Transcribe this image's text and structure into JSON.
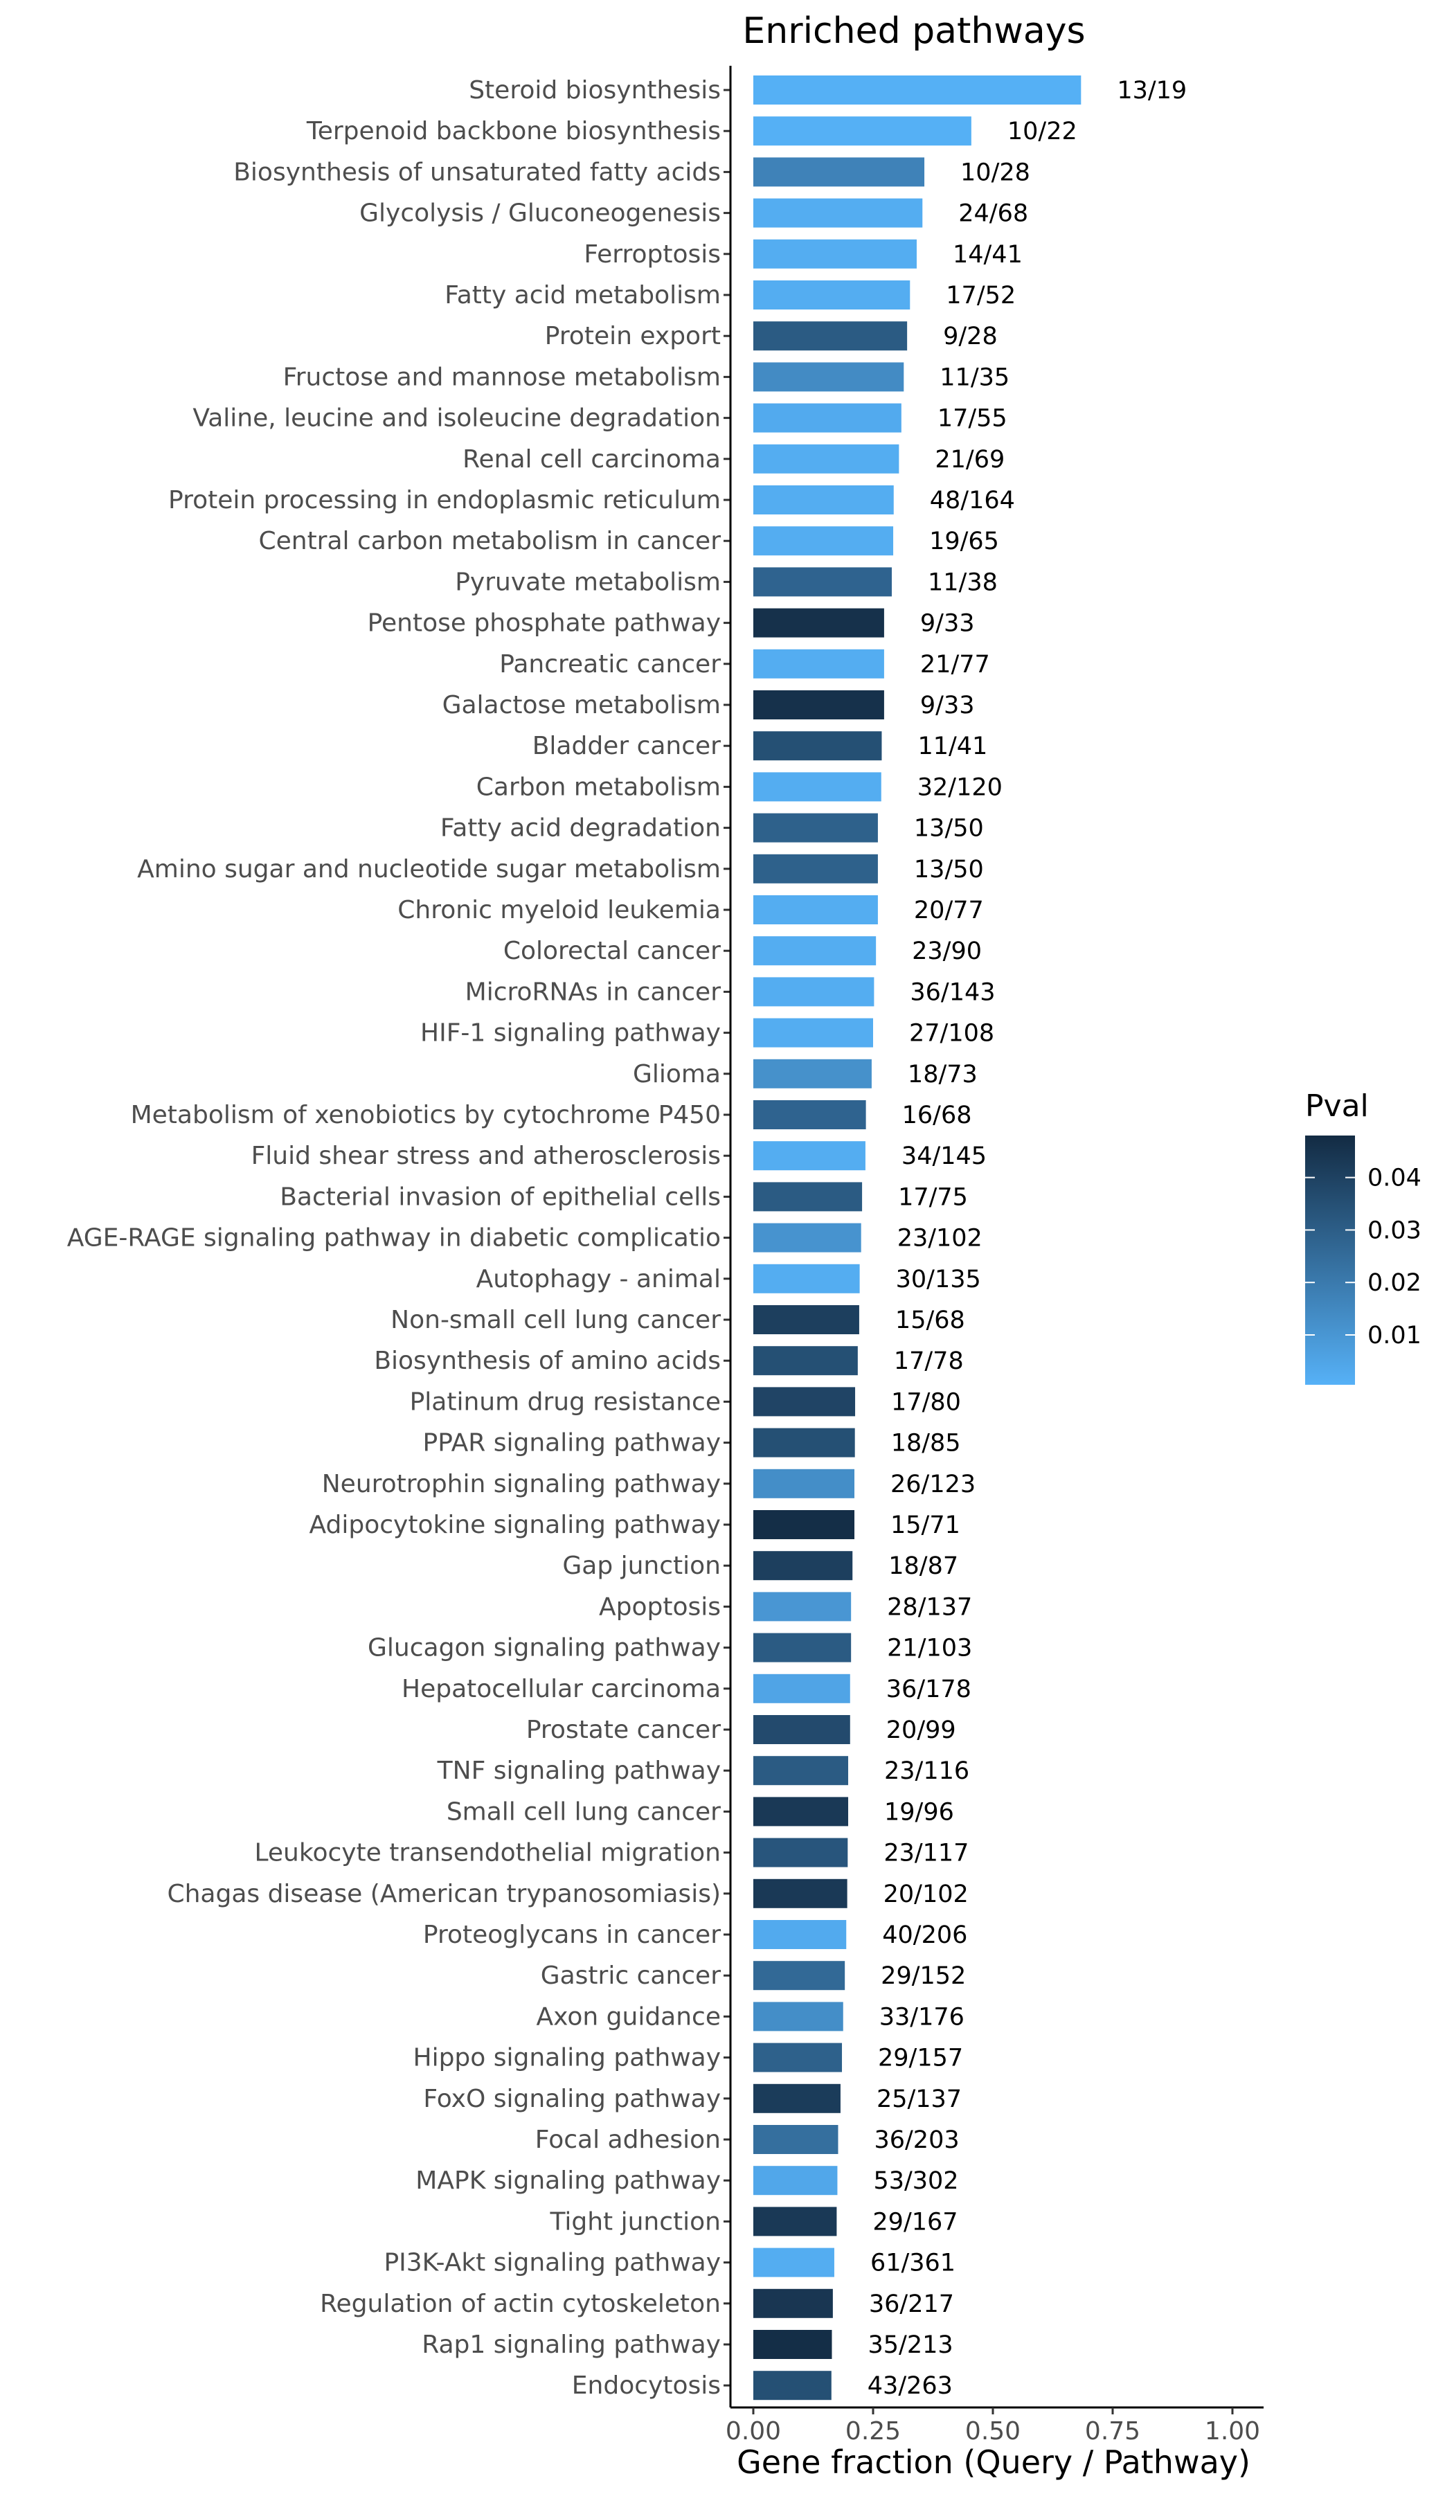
{
  "chart_data": {
    "type": "bar",
    "orientation": "horizontal",
    "title": "Enriched pathways",
    "xlabel": "Gene fraction (Query / Pathway)",
    "ylabel": "",
    "xlim": [
      0,
      1
    ],
    "xticks": [
      "0.00",
      "0.25",
      "0.50",
      "0.75",
      "1.00"
    ],
    "grid": false,
    "legend": {
      "title": "Pval",
      "placement": "right",
      "ticks": [
        "0.04",
        "0.03",
        "0.02",
        "0.01"
      ],
      "tick_values": [
        0.04,
        0.03,
        0.02,
        0.01
      ],
      "range": [
        0.0005,
        0.048
      ],
      "color_low": "#56b1f7",
      "color_high": "#132b43"
    },
    "categories": [
      "Steroid biosynthesis",
      "Terpenoid backbone biosynthesis",
      "Biosynthesis of unsaturated fatty acids",
      "Glycolysis / Gluconeogenesis",
      "Ferroptosis",
      "Fatty acid metabolism",
      "Protein export",
      "Fructose and mannose metabolism",
      "Valine, leucine and isoleucine degradation",
      "Renal cell carcinoma",
      "Protein processing in endoplasmic reticulum",
      "Central carbon metabolism in cancer",
      "Pyruvate metabolism",
      "Pentose phosphate pathway",
      "Pancreatic cancer",
      "Galactose metabolism",
      "Bladder cancer",
      "Carbon metabolism",
      "Fatty acid degradation",
      "Amino sugar and nucleotide sugar metabolism",
      "Chronic myeloid leukemia",
      "Colorectal cancer",
      "MicroRNAs in cancer",
      "HIF-1 signaling pathway",
      "Glioma",
      "Metabolism of xenobiotics by cytochrome P450",
      "Fluid shear stress and atherosclerosis",
      "Bacterial invasion of epithelial cells",
      "AGE-RAGE signaling pathway in diabetic complicatio",
      "Autophagy - animal",
      "Non-small cell lung cancer",
      "Biosynthesis of amino acids",
      "Platinum drug resistance",
      "PPAR signaling pathway",
      "Neurotrophin signaling pathway",
      "Adipocytokine signaling pathway",
      "Gap junction",
      "Apoptosis",
      "Glucagon signaling pathway",
      "Hepatocellular carcinoma",
      "Prostate cancer",
      "TNF signaling pathway",
      "Small cell lung cancer",
      "Leukocyte transendothelial migration",
      "Chagas disease (American trypanosomiasis)",
      "Proteoglycans in cancer",
      "Gastric cancer",
      "Axon guidance",
      "Hippo signaling pathway",
      "FoxO signaling pathway",
      "Focal adhesion",
      "MAPK signaling pathway",
      "Tight junction",
      "PI3K-Akt signaling pathway",
      "Regulation of actin cytoskeleton",
      "Rap1 signaling pathway",
      "Endocytosis"
    ],
    "labels": [
      "13/19",
      "10/22",
      "10/28",
      "24/68",
      "14/41",
      "17/52",
      "9/28",
      "11/35",
      "17/55",
      "21/69",
      "48/164",
      "19/65",
      "11/38",
      "9/33",
      "21/77",
      "9/33",
      "11/41",
      "32/120",
      "13/50",
      "13/50",
      "20/77",
      "23/90",
      "36/143",
      "27/108",
      "18/73",
      "16/68",
      "34/145",
      "17/75",
      "23/102",
      "30/135",
      "15/68",
      "17/78",
      "17/80",
      "18/85",
      "26/123",
      "15/71",
      "18/87",
      "28/137",
      "21/103",
      "36/178",
      "20/99",
      "23/116",
      "19/96",
      "23/117",
      "20/102",
      "40/206",
      "29/152",
      "33/176",
      "29/157",
      "25/137",
      "36/203",
      "53/302",
      "29/167",
      "61/361",
      "36/217",
      "35/213",
      "43/263"
    ],
    "values": [
      0.684,
      0.455,
      0.357,
      0.353,
      0.341,
      0.327,
      0.321,
      0.314,
      0.309,
      0.304,
      0.293,
      0.292,
      0.289,
      0.273,
      0.273,
      0.273,
      0.268,
      0.267,
      0.26,
      0.26,
      0.26,
      0.256,
      0.252,
      0.25,
      0.247,
      0.235,
      0.234,
      0.227,
      0.225,
      0.222,
      0.221,
      0.218,
      0.2125,
      0.212,
      0.211,
      0.211,
      0.207,
      0.204,
      0.204,
      0.202,
      0.202,
      0.198,
      0.198,
      0.197,
      0.196,
      0.194,
      0.191,
      0.1875,
      0.185,
      0.182,
      0.177,
      0.1755,
      0.174,
      0.169,
      0.166,
      0.164,
      0.163
    ],
    "pval": [
      0.001,
      0.001,
      0.017,
      0.002,
      0.002,
      0.002,
      0.031,
      0.014,
      0.003,
      0.002,
      0.002,
      0.002,
      0.028,
      0.046,
      0.002,
      0.046,
      0.035,
      0.002,
      0.029,
      0.029,
      0.002,
      0.002,
      0.002,
      0.002,
      0.012,
      0.028,
      0.002,
      0.031,
      0.011,
      0.002,
      0.041,
      0.035,
      0.039,
      0.035,
      0.013,
      0.047,
      0.041,
      0.01,
      0.031,
      0.005,
      0.037,
      0.031,
      0.043,
      0.033,
      0.043,
      0.003,
      0.026,
      0.013,
      0.029,
      0.042,
      0.024,
      0.004,
      0.043,
      0.002,
      0.044,
      0.047,
      0.035
    ]
  }
}
